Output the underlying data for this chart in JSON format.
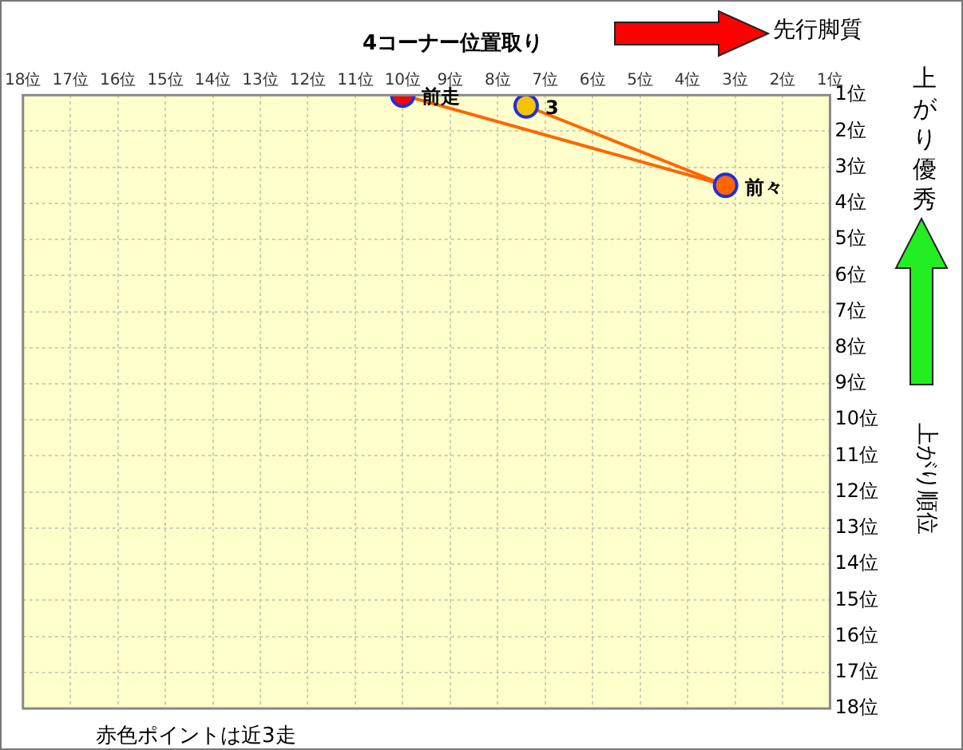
{
  "chart_data": {
    "type": "line",
    "title": "4コーナー位置取り",
    "ylabel": "上がり順位",
    "x": [
      7.4,
      3.2,
      10
    ],
    "series": [
      {
        "color": "#ff6600",
        "colors": [
          "#f5c400",
          "#ff6600",
          "#ff0000"
        ],
        "values": [
          1.3,
          3.5,
          1
        ]
      }
    ],
    "xlim": [
      18,
      1
    ],
    "xticks": [
      {
        "value": 18,
        "label": "18位"
      },
      {
        "value": 17,
        "label": "17位"
      },
      {
        "value": 16,
        "label": "16位"
      },
      {
        "value": 15,
        "label": "15位"
      },
      {
        "value": 14,
        "label": "14位"
      },
      {
        "value": 13,
        "label": "13位"
      },
      {
        "value": 12,
        "label": "12位"
      },
      {
        "value": 11,
        "label": "11位"
      },
      {
        "value": 10,
        "label": "10位"
      },
      {
        "value": 9,
        "label": "9位"
      },
      {
        "value": 8,
        "label": "8位"
      },
      {
        "value": 7,
        "label": "7位"
      },
      {
        "value": 6,
        "label": "6位"
      },
      {
        "value": 5,
        "label": "5位"
      },
      {
        "value": 4,
        "label": "4位"
      },
      {
        "value": 3,
        "label": "3位"
      },
      {
        "value": 2,
        "label": "2位"
      },
      {
        "value": 1,
        "label": "1位"
      }
    ],
    "ylim": [
      18,
      1
    ],
    "yticks": [
      {
        "value": 1,
        "label": "1位"
      },
      {
        "value": 2,
        "label": "2位"
      },
      {
        "value": 3,
        "label": "3位"
      },
      {
        "value": 4,
        "label": "4位"
      },
      {
        "value": 5,
        "label": "5位"
      },
      {
        "value": 6,
        "label": "6位"
      },
      {
        "value": 7,
        "label": "7位"
      },
      {
        "value": 8,
        "label": "8位"
      },
      {
        "value": 9,
        "label": "9位"
      },
      {
        "value": 10,
        "label": "10位"
      },
      {
        "value": 11,
        "label": "11位"
      },
      {
        "value": 12,
        "label": "12位"
      },
      {
        "value": 13,
        "label": "13位"
      },
      {
        "value": 14,
        "label": "14位"
      },
      {
        "value": 15,
        "label": "15位"
      },
      {
        "value": 16,
        "label": "16位"
      },
      {
        "value": 17,
        "label": "17位"
      },
      {
        "value": 18,
        "label": "18位"
      }
    ],
    "grid": true,
    "legend": false,
    "marker": "circle",
    "line_style": "solid",
    "annotations": [
      "先行脚質",
      "上がり優秀",
      "赤色ポイントは近3走",
      {
        "text": "3",
        "x": 7.4,
        "y": 1.3
      },
      {
        "text": "前々",
        "x": 3.2,
        "y": 3.5
      },
      {
        "text": "前走",
        "x": 10,
        "y": 1
      }
    ]
  }
}
